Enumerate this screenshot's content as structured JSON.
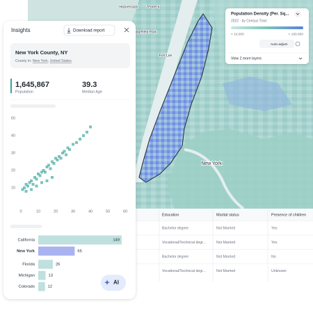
{
  "map": {
    "labels": [
      "Hackensack",
      "Teaneck",
      "Ridgefield Park",
      "Fort Lee",
      "New York"
    ],
    "layer_panel": {
      "title": "Population Density (Per. Sq...",
      "subtitle": "2022 · by Census Tract",
      "min_label": "< 10,000",
      "max_label": "> 160,000",
      "auto_adjust": "Auto-adjust",
      "more": "View 2 more layers"
    }
  },
  "table": {
    "headers": [
      "Education",
      "Marital status",
      "Presence of children"
    ],
    "rows": [
      [
        "Bachelor degree",
        "Not Married",
        "Yes"
      ],
      [
        "Vocational/Technical degr...",
        "Not Married",
        "Yes"
      ],
      [
        "Bachelor degree",
        "Not Married",
        "No"
      ],
      [
        "Vocational/Technical degr...",
        "Not Married",
        "Unknown"
      ]
    ]
  },
  "insights": {
    "title": "Insights",
    "download": "Download report",
    "place": "New York County, NY",
    "place_prefix": "County in:",
    "place_links": [
      "New York",
      "United States"
    ],
    "place_separator": ",",
    "stats": [
      {
        "value": "1,645,867",
        "label": "Population"
      },
      {
        "value": "39.3",
        "label": "Median Age"
      }
    ],
    "ai_button": "AI"
  },
  "chart_data": [
    {
      "type": "scatter",
      "color": "#3aa39a",
      "x": [
        1,
        2,
        3,
        4,
        5,
        6,
        7,
        8,
        9,
        10,
        11,
        12,
        13,
        14,
        15,
        16,
        17,
        18,
        19,
        20,
        21,
        22,
        23,
        24,
        25,
        26,
        27,
        28,
        30,
        32,
        34,
        36,
        38,
        40,
        3,
        6,
        9,
        12,
        15,
        18
      ],
      "y": [
        9,
        10,
        12,
        11,
        13,
        14,
        12,
        16,
        15,
        18,
        17,
        19,
        20,
        19,
        22,
        23,
        21,
        25,
        24,
        27,
        26,
        28,
        27,
        30,
        31,
        29,
        33,
        32,
        35,
        36,
        38,
        40,
        42,
        45,
        8,
        9,
        11,
        13,
        14,
        16
      ],
      "xlim": [
        0,
        60
      ],
      "ylim": [
        0,
        52
      ],
      "xticks": [
        0,
        10,
        20,
        30,
        40,
        50,
        60
      ],
      "yticks": [
        10,
        20,
        30,
        40,
        50
      ],
      "grid": false
    },
    {
      "type": "bar",
      "categories": [
        "California",
        "New York",
        "Florida",
        "Michigan",
        "Colorado"
      ],
      "values": [
        149,
        65,
        26,
        13,
        12
      ],
      "colors": [
        "#bfe0de",
        "#a9b3f0",
        "#bfe0de",
        "#bfe0de",
        "#bfe0de"
      ]
    }
  ]
}
